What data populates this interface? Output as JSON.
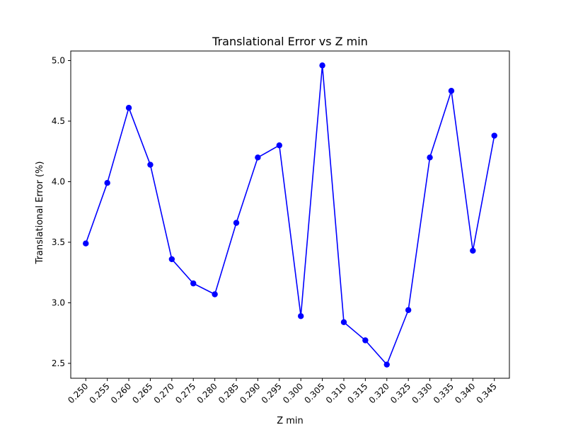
{
  "chart_data": {
    "type": "line",
    "title": "Translational Error vs Z min",
    "xlabel": "Z min",
    "ylabel": "Translational Error (%)",
    "x": [
      0.25,
      0.255,
      0.26,
      0.265,
      0.27,
      0.275,
      0.28,
      0.285,
      0.29,
      0.295,
      0.3,
      0.305,
      0.31,
      0.315,
      0.32,
      0.325,
      0.33,
      0.335,
      0.34,
      0.345
    ],
    "x_tick_labels": [
      "0.250",
      "0.255",
      "0.260",
      "0.265",
      "0.270",
      "0.275",
      "0.280",
      "0.285",
      "0.290",
      "0.295",
      "0.300",
      "0.305",
      "0.310",
      "0.315",
      "0.320",
      "0.325",
      "0.330",
      "0.335",
      "0.340",
      "0.345"
    ],
    "y_ticks": [
      2.5,
      3.0,
      3.5,
      4.0,
      4.5,
      5.0
    ],
    "y_tick_labels": [
      "2.5",
      "3.0",
      "3.5",
      "4.0",
      "4.5",
      "5.0"
    ],
    "xlim": [
      0.2465,
      0.3485
    ],
    "ylim": [
      2.377,
      5.079
    ],
    "grid": false,
    "legend": "none",
    "series": [
      {
        "values": [
          3.49,
          3.99,
          4.61,
          4.14,
          3.36,
          3.16,
          3.07,
          3.66,
          4.2,
          4.3,
          2.89,
          4.96,
          2.84,
          2.69,
          2.49,
          2.94,
          4.2,
          4.75,
          3.43,
          4.38
        ],
        "color": "#0000ff",
        "marker": "circle"
      }
    ]
  }
}
